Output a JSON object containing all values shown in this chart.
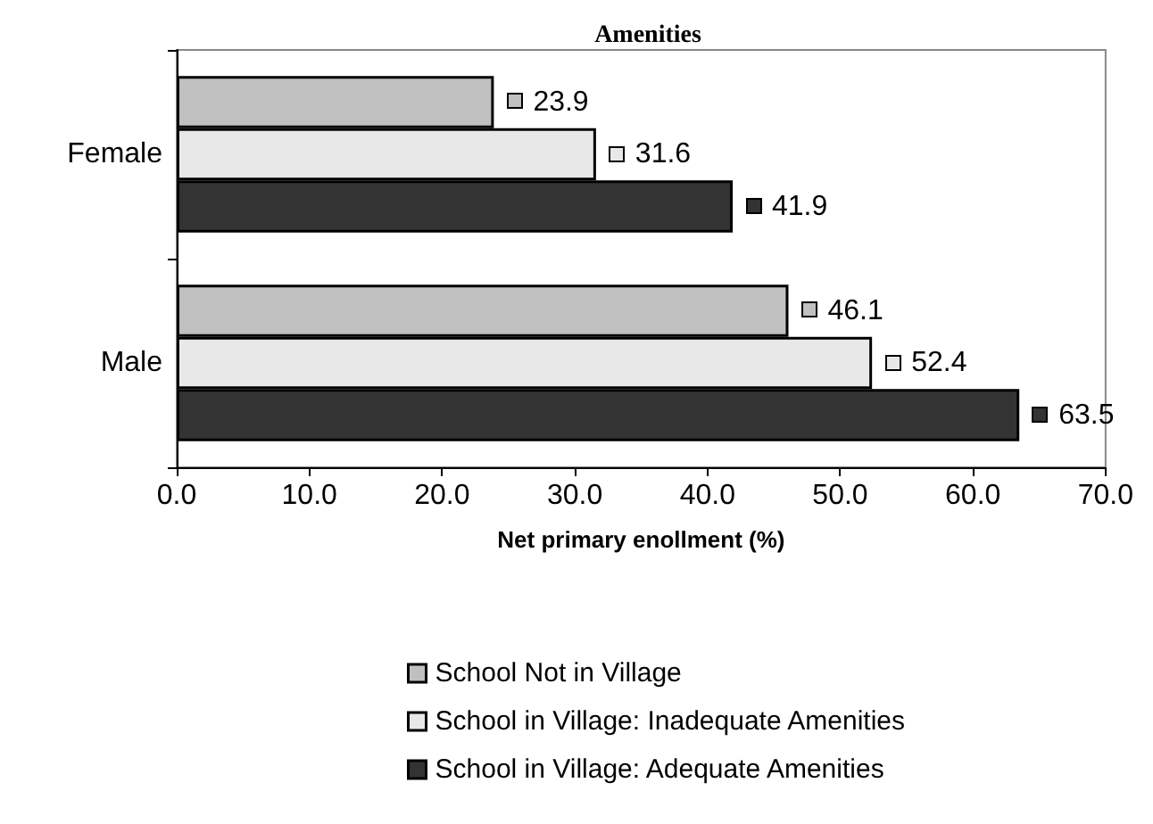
{
  "chart_data": {
    "type": "bar",
    "orientation": "horizontal",
    "title": "Amenities",
    "xlabel": "Net primary enollment (%)",
    "categories": [
      "Female",
      "Male"
    ],
    "series": [
      {
        "name": "School Not in Village",
        "color": "#c0c0c0",
        "values": [
          23.9,
          46.1
        ]
      },
      {
        "name": "School in Village: Inadequate Amenities",
        "color": "#e8e8e8",
        "values": [
          31.6,
          52.4
        ]
      },
      {
        "name": "School in Village: Adequate Amenities",
        "color": "#333333",
        "values": [
          41.9,
          63.5
        ]
      }
    ],
    "xlim": [
      0,
      70
    ],
    "xticks": [
      {
        "value": 0,
        "label": "0.0"
      },
      {
        "value": 10,
        "label": "10.0"
      },
      {
        "value": 20,
        "label": "20.0"
      },
      {
        "value": 30,
        "label": "30.0"
      },
      {
        "value": 40,
        "label": "40.0"
      },
      {
        "value": 50,
        "label": "50.0"
      },
      {
        "value": 60,
        "label": "60.0"
      },
      {
        "value": 70,
        "label": "70.0"
      }
    ],
    "data_labels": true,
    "legend": "bottom",
    "grid": false
  }
}
